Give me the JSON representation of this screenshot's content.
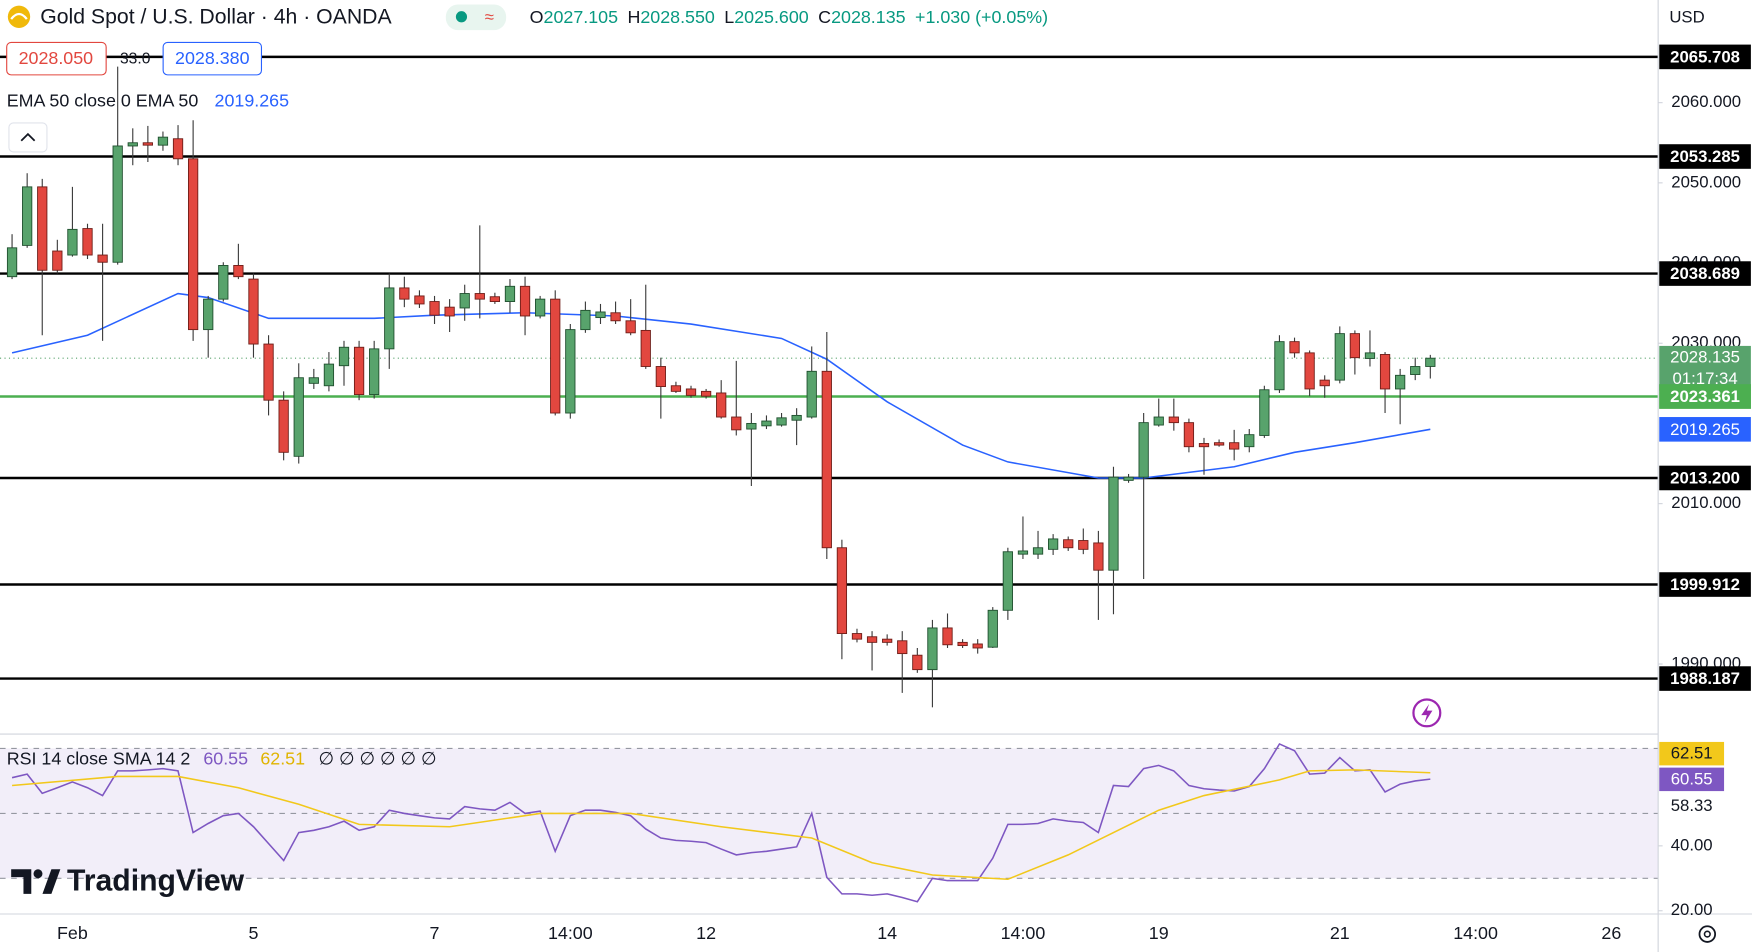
{
  "header": {
    "symbol": "Gold Spot / U.S. Dollar · 4h · OANDA",
    "ohlc": [
      {
        "label": "O",
        "value": "2027.105"
      },
      {
        "label": "H",
        "value": "2028.550"
      },
      {
        "label": "L",
        "value": "2025.600"
      },
      {
        "label": "C",
        "value": "2028.135"
      }
    ],
    "change": "+1.030 (+0.05%)",
    "currency": "USD",
    "sell_price": "2028.050",
    "spread": "33.0",
    "buy_price": "2028.380",
    "countdown": "01:17:34"
  },
  "logo": "TradingView",
  "chart_data": [
    {
      "type": "candlestick",
      "up_color": "#58a36c",
      "down_color": "#e2473f",
      "open": [
        2038.3,
        2042.2,
        2049.5,
        2041.5,
        2041.0,
        2044.3,
        2041.0,
        2040.1,
        2054.6,
        2055.0,
        2054.7,
        2055.5,
        2053.0,
        2031.7,
        2035.5,
        2039.7,
        2038.0,
        2029.9,
        2022.9,
        2015.9,
        2025.0,
        2024.7,
        2027.2,
        2029.5,
        2023.6,
        2029.3,
        2036.9,
        2035.9,
        2035.2,
        2034.5,
        2034.4,
        2036.2,
        2035.8,
        2035.2,
        2037.1,
        2033.4,
        2035.5,
        2021.3,
        2031.7,
        2033.2,
        2033.8,
        2032.8,
        2031.6,
        2027.1,
        2024.7,
        2024.3,
        2024.0,
        2023.8,
        2020.8,
        2019.3,
        2019.7,
        2019.8,
        2020.4,
        2020.8,
        2026.5,
        2004.5,
        1993.8,
        1993.4,
        1993.1,
        1992.9,
        1991.1,
        1989.3,
        1994.5,
        1992.7,
        1992.5,
        1992.1,
        1996.7,
        2003.7,
        2003.7,
        2004.3,
        2005.5,
        2005.4,
        2005.1,
        2001.7,
        2012.9,
        2013.3,
        2019.8,
        2020.8,
        2020.1,
        2017.5,
        2017.6,
        2017.6,
        2017.1,
        2018.5,
        2024.2,
        2030.2,
        2028.8,
        2025.4,
        2025.4,
        2031.2,
        2028.1,
        2028.6,
        2024.3,
        2026.1,
        2027.105
      ],
      "high": [
        2043.6,
        2051.2,
        2050.5,
        2042.9,
        2049.5,
        2044.9,
        2044.9,
        2064.5,
        2056.8,
        2057.1,
        2056.4,
        2057.2,
        2057.8,
        2035.9,
        2040.1,
        2042.4,
        2038.7,
        2031.0,
        2024.0,
        2027.5,
        2026.8,
        2028.9,
        2030.3,
        2030.3,
        2030.3,
        2038.7,
        2038.3,
        2036.6,
        2035.9,
        2035.5,
        2037.3,
        2044.7,
        2036.3,
        2038.0,
        2038.3,
        2035.9,
        2036.6,
        2032.4,
        2035.2,
        2034.9,
        2035.2,
        2035.5,
        2037.3,
        2028.2,
        2025.2,
        2024.7,
        2024.3,
        2025.4,
        2027.8,
        2021.3,
        2021.0,
        2021.3,
        2021.9,
        2029.6,
        2031.4,
        2005.5,
        1994.4,
        1994.1,
        1993.7,
        1994.1,
        1992.0,
        1995.5,
        1996.3,
        1993.1,
        1993.1,
        1997.1,
        2004.5,
        2008.4,
        2006.6,
        2006.2,
        2005.9,
        2006.9,
        2006.6,
        2014.6,
        2013.7,
        2021.3,
        2023.1,
        2023.1,
        2020.6,
        2018.2,
        2018.0,
        2019.2,
        2019.3,
        2024.7,
        2031.0,
        2030.7,
        2029.1,
        2026.0,
        2032.1,
        2031.6,
        2031.6,
        2028.9,
        2026.8,
        2028.2,
        2028.55
      ],
      "low": [
        2038.0,
        2041.9,
        2031.0,
        2038.7,
        2040.8,
        2040.5,
        2030.3,
        2039.8,
        2052.2,
        2052.6,
        2054.0,
        2052.2,
        2030.3,
        2028.2,
        2035.2,
        2038.0,
        2028.2,
        2021.0,
        2015.4,
        2015.0,
        2024.3,
        2024.0,
        2024.7,
        2022.9,
        2023.1,
        2026.8,
        2034.5,
        2034.4,
        2032.4,
        2031.4,
        2032.8,
        2033.1,
        2034.9,
        2033.8,
        2031.0,
        2033.1,
        2021.0,
        2020.6,
        2031.3,
        2032.4,
        2032.4,
        2031.0,
        2026.8,
        2020.6,
        2023.8,
        2023.2,
        2023.1,
        2020.6,
        2018.5,
        2012.2,
        2019.3,
        2019.6,
        2017.3,
        2020.6,
        2003.1,
        1990.6,
        1992.7,
        1989.2,
        1992.3,
        1986.4,
        1988.9,
        1984.6,
        1992.0,
        1992.0,
        1991.3,
        1992.0,
        1995.5,
        2003.1,
        2003.1,
        2003.6,
        2004.1,
        2003.7,
        1995.5,
        1996.2,
        2012.6,
        2000.6,
        2019.6,
        2019.1,
        2016.4,
        2013.6,
        2017.1,
        2015.4,
        2016.4,
        2018.2,
        2023.8,
        2028.2,
        2023.4,
        2023.2,
        2025.0,
        2026.1,
        2027.1,
        2021.3,
        2019.9,
        2025.4,
        2025.6
      ],
      "close": [
        2041.9,
        2049.5,
        2039.1,
        2039.1,
        2044.2,
        2041.0,
        2040.1,
        2054.6,
        2055.0,
        2054.7,
        2055.7,
        2053.0,
        2031.7,
        2035.5,
        2039.7,
        2038.3,
        2029.9,
        2022.9,
        2016.4,
        2025.7,
        2025.7,
        2027.4,
        2029.5,
        2023.6,
        2029.3,
        2036.9,
        2035.5,
        2034.9,
        2033.5,
        2033.4,
        2036.2,
        2035.5,
        2035.2,
        2037.1,
        2033.4,
        2035.5,
        2021.3,
        2031.7,
        2034.1,
        2033.9,
        2032.8,
        2031.3,
        2027.1,
        2024.6,
        2024.0,
        2023.5,
        2023.4,
        2020.8,
        2019.2,
        2020.0,
        2020.3,
        2020.7,
        2021.0,
        2026.5,
        2004.5,
        1993.8,
        1993.1,
        1992.7,
        1992.7,
        1991.3,
        1989.3,
        1994.5,
        1992.4,
        1992.3,
        1992.0,
        1996.7,
        2004.0,
        2004.1,
        2004.5,
        2005.6,
        2004.5,
        2004.3,
        2001.7,
        2013.3,
        2013.3,
        2020.1,
        2020.8,
        2020.1,
        2017.1,
        2017.1,
        2017.3,
        2016.8,
        2018.6,
        2024.2,
        2030.2,
        2028.8,
        2024.3,
        2024.7,
        2031.2,
        2028.2,
        2028.8,
        2024.3,
        2026.0,
        2027.1,
        2028.135
      ],
      "ema": {
        "name": "EMA 50 close 0 EMA 50",
        "color": "#2962ff",
        "x": [
          0,
          5,
          11,
          13,
          17,
          24,
          28,
          34,
          40,
          45,
          51,
          54,
          58,
          63,
          66,
          72,
          75,
          81,
          85,
          89,
          94
        ],
        "values": [
          2028.8,
          2031.0,
          2036.2,
          2035.7,
          2033.1,
          2033.1,
          2033.5,
          2033.8,
          2033.4,
          2032.4,
          2030.6,
          2028.0,
          2022.7,
          2017.3,
          2015.2,
          2013.2,
          2013.2,
          2014.6,
          2016.4,
          2017.6,
          2019.265
        ]
      },
      "levels": [
        {
          "value": 2065.708,
          "color": "#000000"
        },
        {
          "value": 2053.285,
          "color": "#000000"
        },
        {
          "value": 2038.689,
          "color": "#000000"
        },
        {
          "value": 2023.361,
          "color": "#4caf50"
        },
        {
          "value": 2013.2,
          "label": "2013.200",
          "color": "#000000"
        },
        {
          "value": 1999.912,
          "color": "#000000"
        },
        {
          "value": 1988.187,
          "color": "#000000"
        }
      ],
      "xlim": [
        -0.8,
        109.1
      ],
      "ylim": [
        1981.4,
        2072.8
      ],
      "yticks": [
        {
          "value": 2060,
          "label": "2060.000"
        },
        {
          "value": 2050,
          "label": "2050.000"
        },
        {
          "value": 2040,
          "label": "2040.000"
        },
        {
          "value": 2030,
          "label": "2030.000"
        },
        {
          "value": 2010,
          "label": "2010.000"
        },
        {
          "value": 1990,
          "label": "1990.000"
        }
      ],
      "xticks": [
        {
          "value": 4,
          "label": "Feb"
        },
        {
          "value": 16,
          "label": "5"
        },
        {
          "value": 28,
          "label": "7"
        },
        {
          "value": 37,
          "label": "14:00"
        },
        {
          "value": 46,
          "label": "12"
        },
        {
          "value": 58,
          "label": "14"
        },
        {
          "value": 67,
          "label": "14:00"
        },
        {
          "value": 76,
          "label": "19"
        },
        {
          "value": 88,
          "label": "21"
        },
        {
          "value": 97,
          "label": "14:00"
        },
        {
          "value": 106,
          "label": "26"
        }
      ]
    },
    {
      "type": "line",
      "title": "RSI 14 close SMA 14 2",
      "placeholders": "∅ ∅ ∅ ∅ ∅ ∅",
      "series": [
        {
          "color": "#7e57c2",
          "values": [
            61.0,
            62.1,
            56.2,
            57.9,
            59.7,
            57.9,
            55.5,
            63.1,
            63.1,
            63.4,
            63.8,
            63.1,
            44.1,
            46.9,
            49.3,
            50.0,
            45.9,
            40.7,
            35.5,
            44.1,
            44.8,
            45.9,
            47.6,
            44.8,
            45.9,
            51.0,
            50.0,
            49.3,
            48.6,
            48.3,
            52.1,
            51.4,
            51.0,
            53.4,
            50.0,
            50.7,
            38.3,
            49.3,
            51.0,
            51.0,
            50.3,
            49.3,
            45.2,
            42.4,
            41.7,
            41.4,
            41.0,
            39.0,
            37.2,
            37.9,
            38.3,
            39.0,
            39.7,
            50.0,
            30.3,
            25.2,
            25.2,
            24.8,
            25.2,
            24.1,
            22.8,
            30.0,
            29.3,
            29.3,
            29.3,
            36.2,
            46.6,
            46.6,
            46.9,
            48.3,
            47.6,
            47.2,
            44.1,
            58.6,
            58.3,
            63.8,
            64.8,
            63.1,
            58.6,
            57.6,
            57.2,
            56.9,
            58.3,
            63.8,
            71.4,
            69.3,
            62.1,
            62.4,
            67.2,
            63.1,
            63.4,
            56.6,
            59.0,
            60.0,
            60.55
          ]
        },
        {
          "color": "#f2c81b",
          "x": [
            0,
            7,
            11,
            15,
            19,
            23,
            29,
            35,
            41,
            47,
            53,
            57,
            61,
            66,
            70,
            76,
            79,
            84,
            86,
            89,
            94
          ],
          "values": [
            58.6,
            61.4,
            61.4,
            57.9,
            52.8,
            46.6,
            45.9,
            50.0,
            50.0,
            45.9,
            42.4,
            34.8,
            31.0,
            29.7,
            37.2,
            51.0,
            55.5,
            60.3,
            63.1,
            63.4,
            62.51
          ]
        }
      ],
      "levels": [
        70,
        50,
        30
      ],
      "marker": 58.33,
      "xlim": [
        -0.8,
        109.1
      ],
      "ylim": [
        19,
        73.4
      ],
      "yticks": [
        {
          "value": 40,
          "label": "40.00"
        },
        {
          "value": 20,
          "label": "20.00"
        }
      ]
    }
  ]
}
